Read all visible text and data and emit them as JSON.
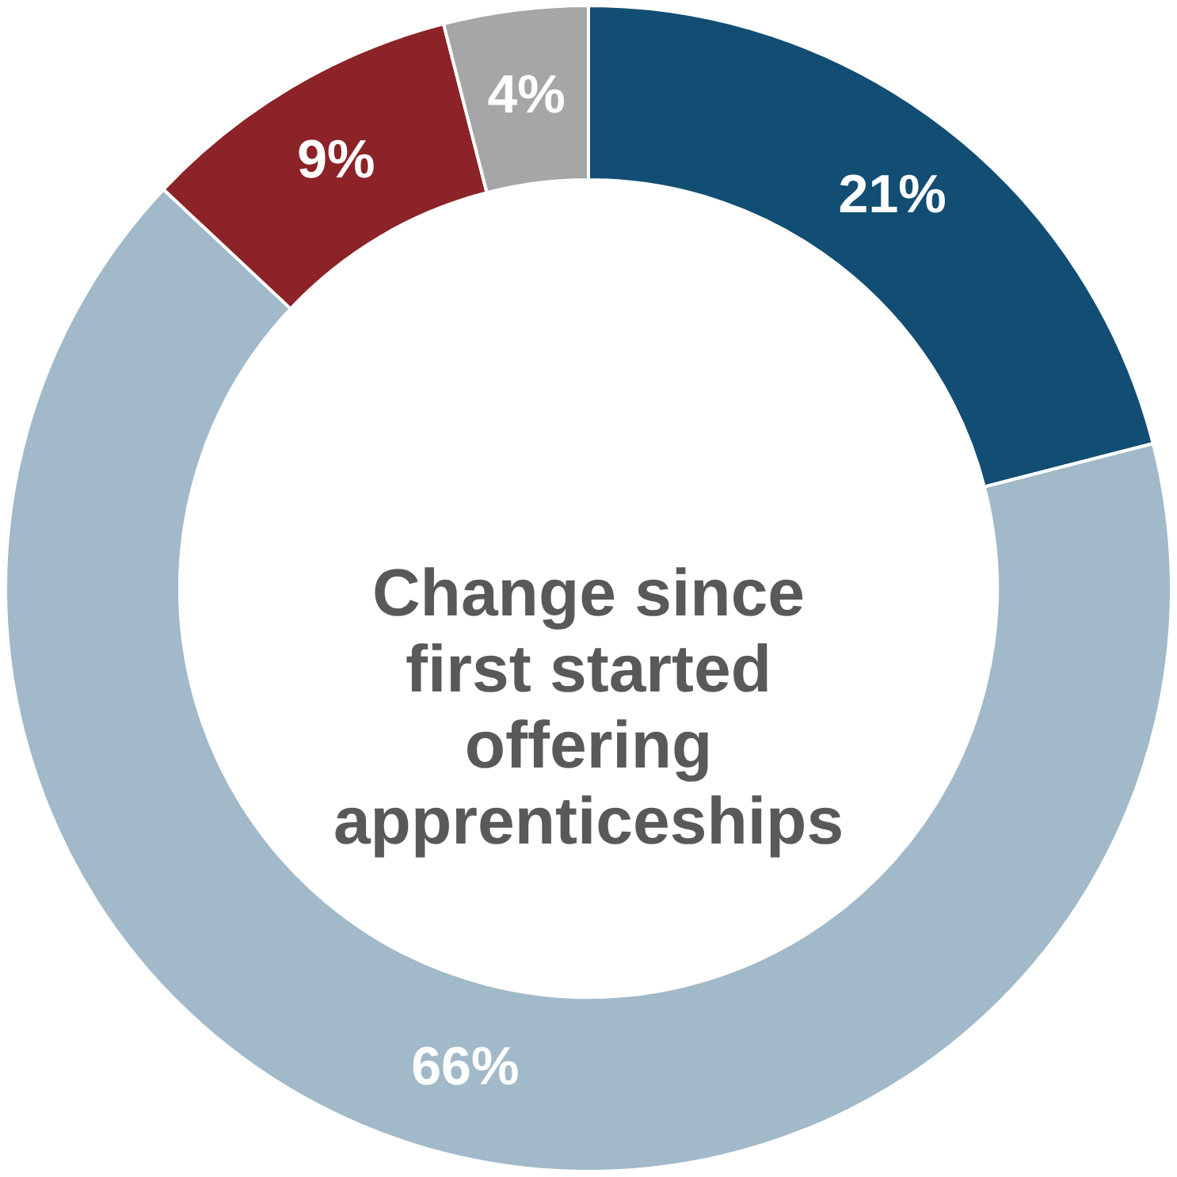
{
  "chart_data": {
    "type": "donut",
    "title": "Change since first started offering apprenticeships",
    "categories": [
      null,
      null,
      null,
      null
    ],
    "values": [
      21,
      66,
      9,
      4
    ],
    "value_labels": [
      "21%",
      "66%",
      "9%",
      "4%"
    ],
    "colors": [
      "#124e73",
      "#a1b9c9",
      "#8b2328",
      "#a6a6a6"
    ]
  }
}
